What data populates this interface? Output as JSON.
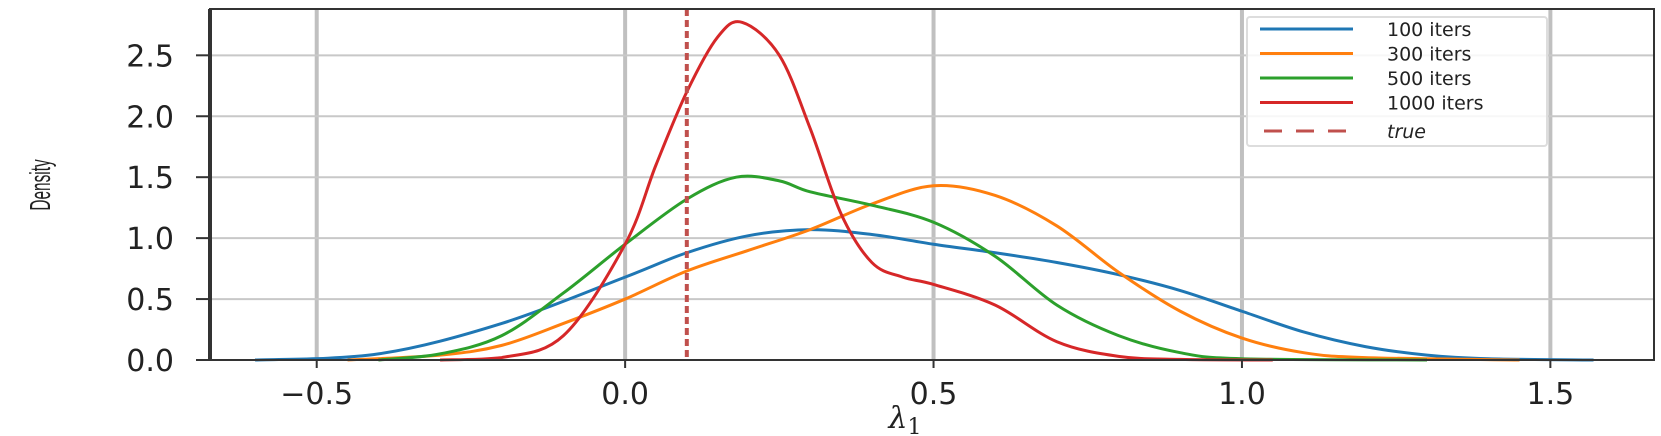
{
  "chart_data": {
    "type": "line",
    "title": "",
    "xlabel": "λ",
    "xlabel_sub": "1",
    "ylabel": "Density",
    "xlim": [
      -0.673,
      1.668
    ],
    "ylim": [
      0,
      2.88
    ],
    "xticks": [
      -0.5,
      0.0,
      0.5,
      1.0,
      1.5
    ],
    "xtick_labels": [
      "−0.5",
      "0.0",
      "0.5",
      "1.0",
      "1.5"
    ],
    "yticks": [
      0,
      0.5,
      1.0,
      1.5,
      2.0,
      2.5
    ],
    "ytick_labels": [
      "0.0",
      "0.5",
      "1.0",
      "1.5",
      "2.0",
      "2.5"
    ],
    "grid": true,
    "legend_position": "top-right",
    "true_value": {
      "name": "true",
      "x": 0.1,
      "color": "#c0504d"
    },
    "series": [
      {
        "name": "100 iters",
        "color": "#1f77b4",
        "x": [
          -0.6,
          -0.4,
          -0.2,
          0,
          0.1,
          0.2,
          0.3,
          0.4,
          0.5,
          0.6,
          0.7,
          0.8,
          0.9,
          1.0,
          1.1,
          1.2,
          1.3,
          1.4,
          1.57
        ],
        "y": [
          0,
          0.05,
          0.3,
          0.68,
          0.88,
          1.02,
          1.07,
          1.03,
          0.95,
          0.88,
          0.8,
          0.7,
          0.57,
          0.4,
          0.23,
          0.11,
          0.04,
          0.01,
          0
        ]
      },
      {
        "name": "300 iters",
        "color": "#ff7f0e",
        "x": [
          -0.45,
          -0.3,
          -0.2,
          -0.1,
          0,
          0.1,
          0.2,
          0.3,
          0.4,
          0.5,
          0.6,
          0.7,
          0.8,
          0.9,
          1.0,
          1.1,
          1.2,
          1.45
        ],
        "y": [
          0,
          0.04,
          0.12,
          0.3,
          0.5,
          0.73,
          0.9,
          1.07,
          1.28,
          1.43,
          1.35,
          1.1,
          0.72,
          0.4,
          0.18,
          0.06,
          0.02,
          0
        ]
      },
      {
        "name": "500 iters",
        "color": "#2ca02c",
        "x": [
          -0.4,
          -0.3,
          -0.2,
          -0.1,
          0,
          0.1,
          0.18,
          0.25,
          0.3,
          0.4,
          0.5,
          0.6,
          0.7,
          0.8,
          0.9,
          1.0,
          1.3
        ],
        "y": [
          0,
          0.05,
          0.2,
          0.55,
          0.95,
          1.32,
          1.5,
          1.47,
          1.38,
          1.27,
          1.13,
          0.85,
          0.45,
          0.2,
          0.06,
          0.01,
          0
        ]
      },
      {
        "name": "1000 iters",
        "color": "#d62728",
        "x": [
          -0.3,
          -0.2,
          -0.1,
          0,
          0.05,
          0.1,
          0.15,
          0.19,
          0.25,
          0.3,
          0.35,
          0.4,
          0.45,
          0.5,
          0.6,
          0.7,
          0.8,
          0.9,
          1.05
        ],
        "y": [
          0,
          0.02,
          0.2,
          0.95,
          1.6,
          2.2,
          2.65,
          2.77,
          2.5,
          1.9,
          1.2,
          0.8,
          0.68,
          0.62,
          0.45,
          0.15,
          0.03,
          0.005,
          0
        ]
      }
    ]
  }
}
